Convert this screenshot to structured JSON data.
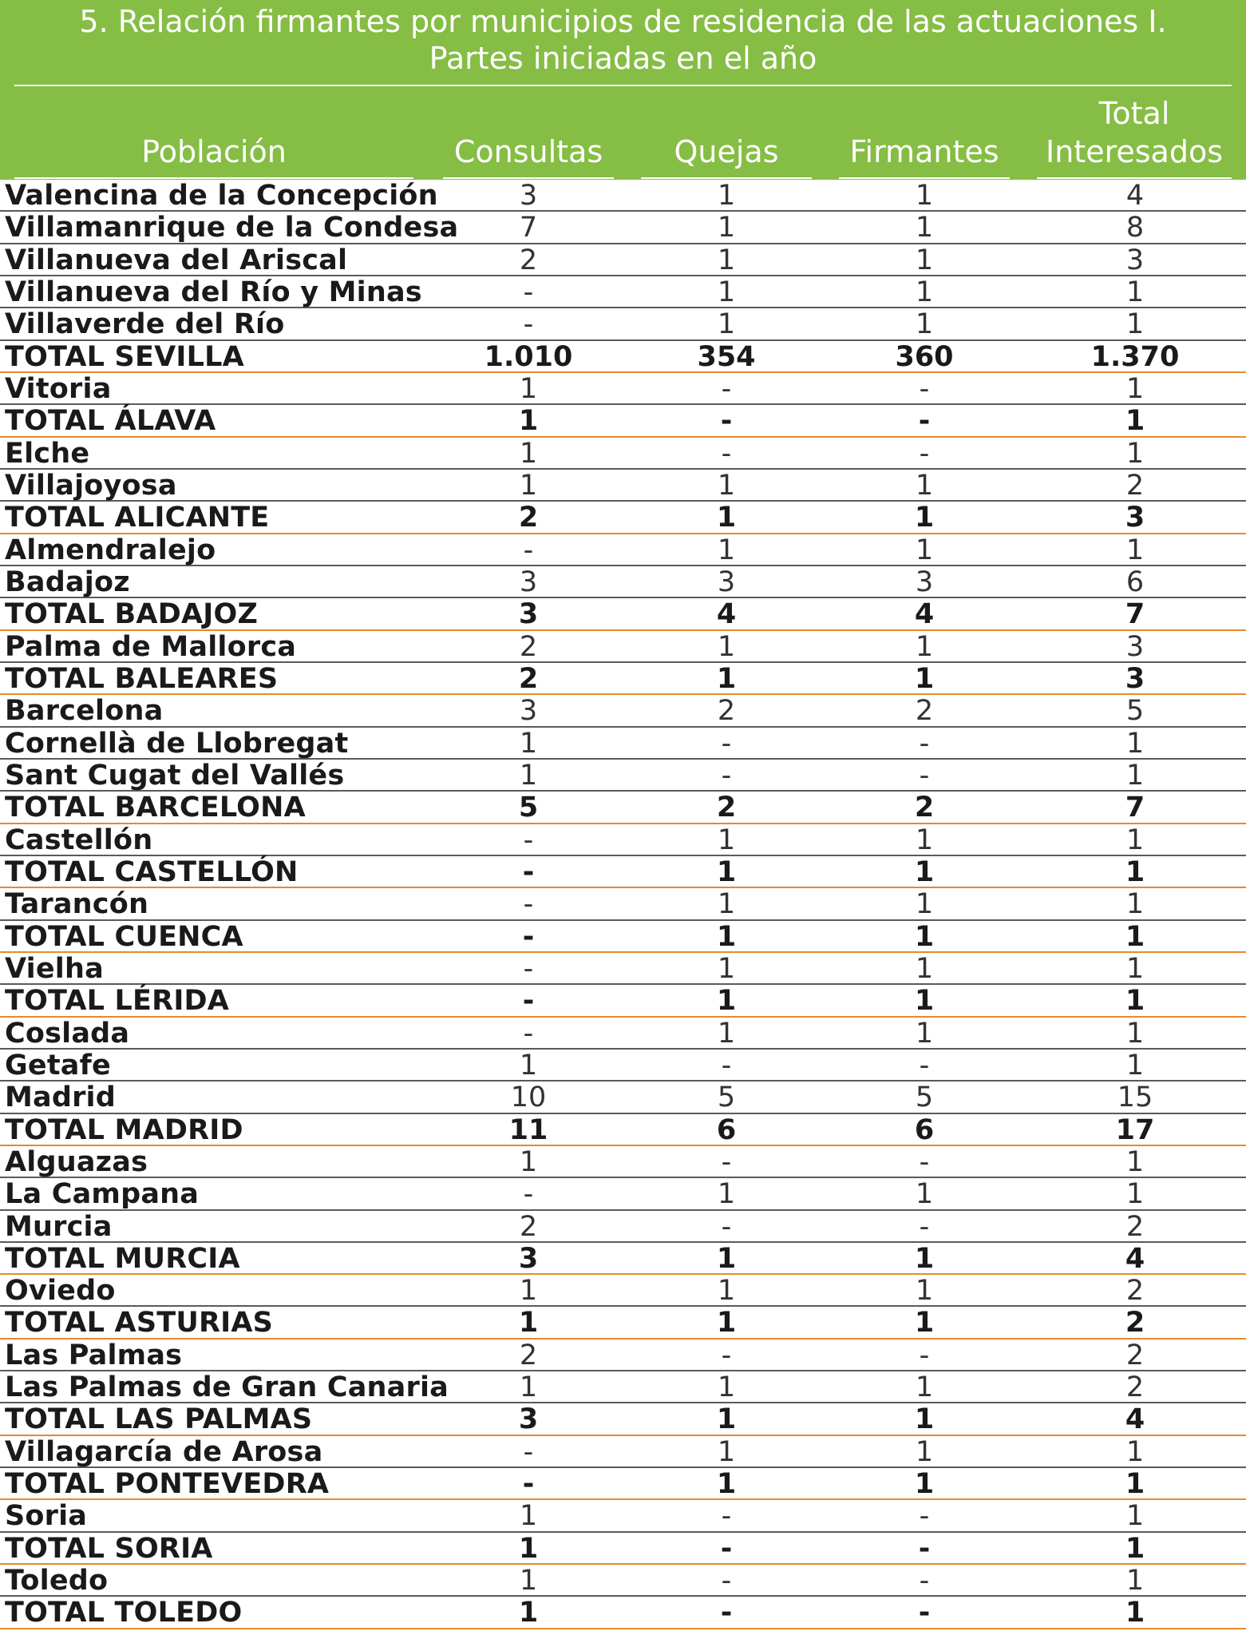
{
  "table": {
    "title_line1": "5. Relación firmantes por municipios de residencia de las actuaciones I.",
    "title_line2": "Partes  iniciadas en el año",
    "columns": {
      "poblacion": "Población",
      "consultas": "Consultas",
      "quejas": "Quejas",
      "firmantes": "Firmantes",
      "total_line1": "Total",
      "total_line2": "Interesados"
    },
    "rows": [
      {
        "name": "Valencina de la Concepción",
        "consultas": "3",
        "quejas": "1",
        "firmantes": "1",
        "total": "4"
      },
      {
        "name": "Villamanrique de la Condesa",
        "consultas": "7",
        "quejas": "1",
        "firmantes": "1",
        "total": "8"
      },
      {
        "name": "Villanueva del Ariscal",
        "consultas": "2",
        "quejas": "1",
        "firmantes": "1",
        "total": "3"
      },
      {
        "name": "Villanueva del Río y Minas",
        "consultas": "-",
        "quejas": "1",
        "firmantes": "1",
        "total": "1"
      },
      {
        "name": "Villaverde del Río",
        "consultas": "-",
        "quejas": "1",
        "firmantes": "1",
        "total": "1"
      },
      {
        "name": "TOTAL SEVILLA",
        "consultas": "1.010",
        "quejas": "354",
        "firmantes": "360",
        "total": "1.370",
        "is_total": true
      },
      {
        "name": "Vitoria",
        "consultas": "1",
        "quejas": "-",
        "firmantes": "-",
        "total": "1"
      },
      {
        "name": "TOTAL ÁLAVA",
        "consultas": "1",
        "quejas": "-",
        "firmantes": "-",
        "total": "1",
        "is_total": true
      },
      {
        "name": "Elche",
        "consultas": "1",
        "quejas": "-",
        "firmantes": "-",
        "total": "1"
      },
      {
        "name": "Villajoyosa",
        "consultas": "1",
        "quejas": "1",
        "firmantes": "1",
        "total": "2"
      },
      {
        "name": "TOTAL ALICANTE",
        "consultas": "2",
        "quejas": "1",
        "firmantes": "1",
        "total": "3",
        "is_total": true
      },
      {
        "name": "Almendralejo",
        "consultas": "-",
        "quejas": "1",
        "firmantes": "1",
        "total": "1"
      },
      {
        "name": "Badajoz",
        "consultas": "3",
        "quejas": "3",
        "firmantes": "3",
        "total": "6"
      },
      {
        "name": "TOTAL BADAJOZ",
        "consultas": "3",
        "quejas": "4",
        "firmantes": "4",
        "total": "7",
        "is_total": true
      },
      {
        "name": "Palma de Mallorca",
        "consultas": "2",
        "quejas": "1",
        "firmantes": "1",
        "total": "3"
      },
      {
        "name": "TOTAL BALEARES",
        "consultas": "2",
        "quejas": "1",
        "firmantes": "1",
        "total": "3",
        "is_total": true
      },
      {
        "name": "Barcelona",
        "consultas": "3",
        "quejas": "2",
        "firmantes": "2",
        "total": "5"
      },
      {
        "name": "Cornellà de Llobregat",
        "consultas": "1",
        "quejas": "-",
        "firmantes": "-",
        "total": "1"
      },
      {
        "name": "Sant Cugat del Vallés",
        "consultas": "1",
        "quejas": "-",
        "firmantes": "-",
        "total": "1"
      },
      {
        "name": "TOTAL BARCELONA",
        "consultas": "5",
        "quejas": "2",
        "firmantes": "2",
        "total": "7",
        "is_total": true
      },
      {
        "name": "Castellón",
        "consultas": "-",
        "quejas": "1",
        "firmantes": "1",
        "total": "1"
      },
      {
        "name": "TOTAL CASTELLÓN",
        "consultas": "-",
        "quejas": "1",
        "firmantes": "1",
        "total": "1",
        "is_total": true
      },
      {
        "name": "Tarancón",
        "consultas": "-",
        "quejas": "1",
        "firmantes": "1",
        "total": "1"
      },
      {
        "name": "TOTAL CUENCA",
        "consultas": "-",
        "quejas": "1",
        "firmantes": "1",
        "total": "1",
        "is_total": true
      },
      {
        "name": "Vielha",
        "consultas": "-",
        "quejas": "1",
        "firmantes": "1",
        "total": "1"
      },
      {
        "name": "TOTAL LÉRIDA",
        "consultas": "-",
        "quejas": "1",
        "firmantes": "1",
        "total": "1",
        "is_total": true
      },
      {
        "name": "Coslada",
        "consultas": "-",
        "quejas": "1",
        "firmantes": "1",
        "total": "1"
      },
      {
        "name": "Getafe",
        "consultas": "1",
        "quejas": "-",
        "firmantes": "-",
        "total": "1"
      },
      {
        "name": "Madrid",
        "consultas": "10",
        "quejas": "5",
        "firmantes": "5",
        "total": "15"
      },
      {
        "name": "TOTAL MADRID",
        "consultas": "11",
        "quejas": "6",
        "firmantes": "6",
        "total": "17",
        "is_total": true
      },
      {
        "name": "Alguazas",
        "consultas": "1",
        "quejas": "-",
        "firmantes": "-",
        "total": "1"
      },
      {
        "name": "La Campana",
        "consultas": "-",
        "quejas": "1",
        "firmantes": "1",
        "total": "1"
      },
      {
        "name": "Murcia",
        "consultas": "2",
        "quejas": "-",
        "firmantes": "-",
        "total": "2"
      },
      {
        "name": "TOTAL MURCIA",
        "consultas": "3",
        "quejas": "1",
        "firmantes": "1",
        "total": "4",
        "is_total": true
      },
      {
        "name": "Oviedo",
        "consultas": "1",
        "quejas": "1",
        "firmantes": "1",
        "total": "2"
      },
      {
        "name": "TOTAL ASTURIAS",
        "consultas": "1",
        "quejas": "1",
        "firmantes": "1",
        "total": "2",
        "is_total": true
      },
      {
        "name": "Las Palmas",
        "consultas": "2",
        "quejas": "-",
        "firmantes": "-",
        "total": "2"
      },
      {
        "name": "Las Palmas de Gran Canaria",
        "consultas": "1",
        "quejas": "1",
        "firmantes": "1",
        "total": "2"
      },
      {
        "name": "TOTAL LAS PALMAS",
        "consultas": "3",
        "quejas": "1",
        "firmantes": "1",
        "total": "4",
        "is_total": true
      },
      {
        "name": "Villagarcía de Arosa",
        "consultas": "-",
        "quejas": "1",
        "firmantes": "1",
        "total": "1"
      },
      {
        "name": "TOTAL PONTEVEDRA",
        "consultas": "-",
        "quejas": "1",
        "firmantes": "1",
        "total": "1",
        "is_total": true
      },
      {
        "name": "Soria",
        "consultas": "1",
        "quejas": "-",
        "firmantes": "-",
        "total": "1"
      },
      {
        "name": "TOTAL SORIA",
        "consultas": "1",
        "quejas": "-",
        "firmantes": "-",
        "total": "1",
        "is_total": true
      },
      {
        "name": "Toledo",
        "consultas": "1",
        "quejas": "-",
        "firmantes": "-",
        "total": "1"
      },
      {
        "name": "TOTAL TOLEDO",
        "consultas": "1",
        "quejas": "-",
        "firmantes": "-",
        "total": "1",
        "is_total": true
      }
    ]
  },
  "colors": {
    "header_bg": "#86bd45",
    "row_rule": "#5a5a5a",
    "total_rule": "#e58a2c"
  }
}
